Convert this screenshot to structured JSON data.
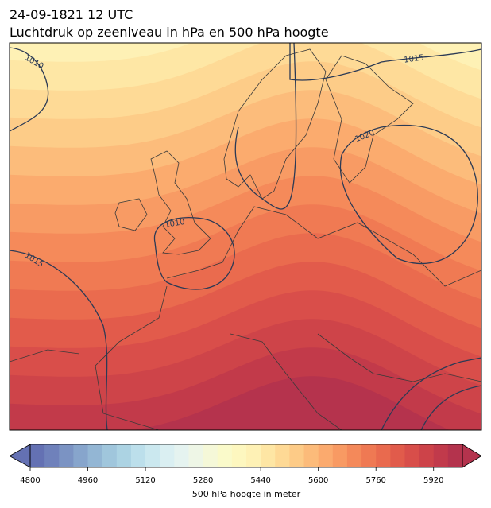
{
  "header": {
    "title": "24-09-1821 12 UTC",
    "subtitle": "Luchtdruk op zeeniveau in hPa en 500 hPa hoogte"
  },
  "map": {
    "contour_labels": [
      1010,
      1015,
      1020,
      1010,
      1015
    ]
  },
  "chart_data": {
    "type": "colorbar",
    "xlabel": "500 hPa hoogte in meter",
    "xlim": [
      4800,
      6000
    ],
    "xticks": [
      4800,
      4960,
      5120,
      5280,
      5440,
      5600,
      5760,
      5920
    ],
    "colors": [
      "#6471b3",
      "#6f81bb",
      "#7b93c3",
      "#87a5cc",
      "#93b6d4",
      "#a0c6dc",
      "#acd3e3",
      "#bcdfeb",
      "#cbe8ef",
      "#daeff2",
      "#e5f3f0",
      "#eef6e6",
      "#f5f8d8",
      "#fafaca",
      "#fdf7bf",
      "#fef1b5",
      "#fee6a4",
      "#fed995",
      "#fdcb87",
      "#fcbb7a",
      "#fbaa6e",
      "#f89a63",
      "#f4895a",
      "#ef7953",
      "#e96a4e",
      "#e15b4b",
      "#d84e4a",
      "#cd4349",
      "#c13a4b",
      "#b4334d"
    ]
  }
}
